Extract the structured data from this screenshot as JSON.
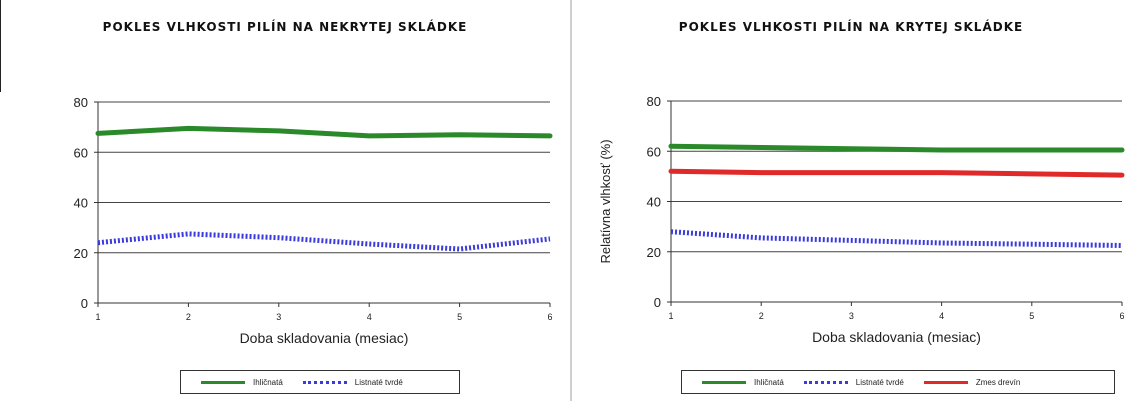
{
  "chart_data": [
    {
      "type": "line",
      "title": "POKLES VLHKOSTI PILÍN NA NEKRYTEJ SKLÁDKE",
      "xlabel": "Doba skladovania (mesiac)",
      "ylabel": "",
      "x": [
        1,
        2,
        3,
        4,
        5,
        6
      ],
      "xticks": [
        "1",
        "2",
        "3",
        "4",
        "5",
        "6"
      ],
      "yticks": [
        "0",
        "20",
        "40",
        "60",
        "80"
      ],
      "ylim": [
        0,
        80
      ],
      "grid": "horizontal",
      "legend_position": "bottom",
      "series": [
        {
          "name": "Ihličnatá",
          "color": "#2a8a2a",
          "style": "solid",
          "values": [
            67.5,
            69.5,
            68.5,
            66.5,
            67,
            66.5
          ]
        },
        {
          "name": "Listnaté tvrdé",
          "color": "#3a3ae0",
          "style": "dashed",
          "values": [
            24,
            27.5,
            26,
            23.5,
            21.5,
            25.5
          ]
        }
      ]
    },
    {
      "type": "line",
      "title": "POKLES VLHKOSTI PILÍN NA KRYTEJ SKLÁDKE",
      "xlabel": "Doba skladovania (mesiac)",
      "ylabel": "Relatívna vlhkosť (%)",
      "x": [
        1,
        2,
        3,
        4,
        5,
        6
      ],
      "xticks": [
        "1",
        "2",
        "3",
        "4",
        "5",
        "6"
      ],
      "yticks": [
        "0",
        "20",
        "40",
        "60",
        "80"
      ],
      "ylim": [
        0,
        80
      ],
      "grid": "horizontal",
      "legend_position": "bottom",
      "series": [
        {
          "name": "Ihličnatá",
          "color": "#2a8a2a",
          "style": "solid",
          "values": [
            62,
            61.5,
            61,
            60.5,
            60.5,
            60.5
          ]
        },
        {
          "name": "Listnaté tvrdé",
          "color": "#3a3ae0",
          "style": "dashed",
          "values": [
            28,
            25.5,
            24.5,
            23.5,
            23,
            22.5
          ]
        },
        {
          "name": "Zmes drevín",
          "color": "#e02a2a",
          "style": "solid",
          "values": [
            52,
            51.5,
            51.5,
            51.5,
            51,
            50.5
          ]
        }
      ]
    }
  ]
}
